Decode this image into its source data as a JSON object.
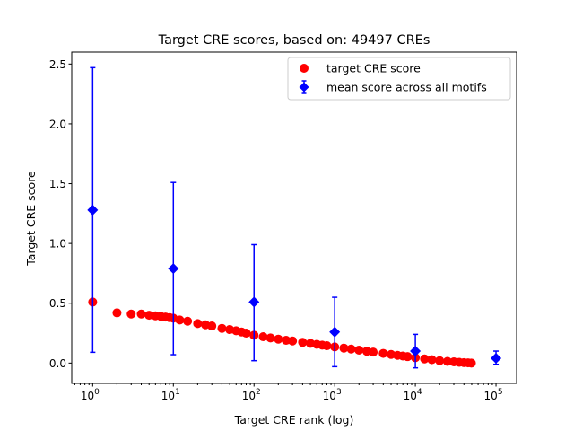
{
  "chart_data": {
    "type": "scatter",
    "title": "Target CRE scores, based on: 49497 CREs",
    "xlabel": "Target CRE rank (log)",
    "ylabel": "Target CRE score",
    "xscale": "log",
    "xlim": [
      0.55,
      180000
    ],
    "ylim": [
      -0.17,
      2.6
    ],
    "x_ticks": [
      {
        "value": 1,
        "base": "10",
        "exp": "0"
      },
      {
        "value": 10,
        "base": "10",
        "exp": "1"
      },
      {
        "value": 100,
        "base": "10",
        "exp": "2"
      },
      {
        "value": 1000,
        "base": "10",
        "exp": "3"
      },
      {
        "value": 10000,
        "base": "10",
        "exp": "4"
      },
      {
        "value": 100000,
        "base": "10",
        "exp": "5"
      }
    ],
    "y_ticks": [
      {
        "value": 0,
        "label": "0.0"
      },
      {
        "value": 0.5,
        "label": "0.5"
      },
      {
        "value": 1.0,
        "label": "1.0"
      },
      {
        "value": 1.5,
        "label": "1.5"
      },
      {
        "value": 2.0,
        "label": "2.0"
      },
      {
        "value": 2.5,
        "label": "2.5"
      }
    ],
    "grid": false,
    "legend_position": "top-right",
    "series": [
      {
        "name": "target CRE score",
        "marker": "circle",
        "color": "#ff0000",
        "x": [
          1,
          2,
          3,
          4,
          5,
          6,
          7,
          8,
          9,
          10,
          12,
          15,
          20,
          25,
          30,
          40,
          50,
          60,
          70,
          80,
          100,
          130,
          160,
          200,
          250,
          300,
          400,
          500,
          600,
          700,
          800,
          1000,
          1300,
          1600,
          2000,
          2500,
          3000,
          4000,
          5000,
          6000,
          7000,
          8000,
          10000,
          13000,
          16000,
          20000,
          25000,
          30000,
          35000,
          40000,
          45000,
          49497
        ],
        "y": [
          0.51,
          0.42,
          0.41,
          0.41,
          0.4,
          0.395,
          0.39,
          0.385,
          0.38,
          0.375,
          0.36,
          0.35,
          0.33,
          0.32,
          0.31,
          0.29,
          0.28,
          0.27,
          0.26,
          0.25,
          0.233,
          0.22,
          0.21,
          0.2,
          0.19,
          0.185,
          0.173,
          0.165,
          0.157,
          0.15,
          0.145,
          0.135,
          0.125,
          0.117,
          0.108,
          0.099,
          0.092,
          0.081,
          0.072,
          0.065,
          0.059,
          0.054,
          0.045,
          0.035,
          0.028,
          0.02,
          0.014,
          0.01,
          0.006,
          0.004,
          0.002,
          0.0
        ]
      },
      {
        "name": "mean score across all motifs",
        "marker": "diamond",
        "color": "#0000ff",
        "x": [
          1,
          10,
          100,
          1000,
          10000,
          100000
        ],
        "y": [
          1.28,
          0.79,
          0.51,
          0.26,
          0.1,
          0.04
        ],
        "err_low": [
          0.09,
          0.07,
          0.02,
          -0.03,
          -0.04,
          -0.01
        ],
        "err_high": [
          2.47,
          1.51,
          0.99,
          0.55,
          0.24,
          0.1
        ]
      }
    ]
  }
}
